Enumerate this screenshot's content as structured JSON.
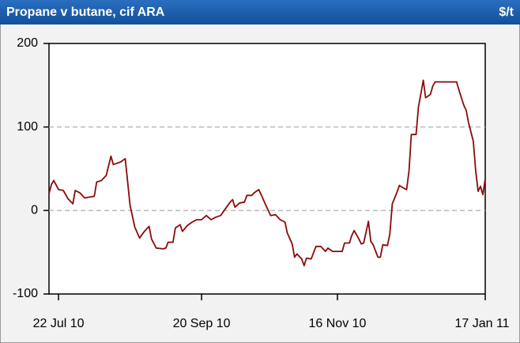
{
  "chart_data": {
    "type": "line",
    "title": "Propane v butane, cif ARA",
    "unit": "$/t",
    "x": [
      "2010-07-18",
      "2010-07-19",
      "2010-07-20",
      "2010-07-22",
      "2010-07-24",
      "2010-07-26",
      "2010-07-28",
      "2010-07-29",
      "2010-07-31",
      "2010-08-02",
      "2010-08-04",
      "2010-08-06",
      "2010-08-07",
      "2010-08-09",
      "2010-08-11",
      "2010-08-13",
      "2010-08-14",
      "2010-08-17",
      "2010-08-19",
      "2010-08-21",
      "2010-08-23",
      "2010-08-25",
      "2010-08-27",
      "2010-08-29",
      "2010-08-30",
      "2010-09-01",
      "2010-09-04",
      "2010-09-05",
      "2010-09-06",
      "2010-09-08",
      "2010-09-09",
      "2010-09-11",
      "2010-09-12",
      "2010-09-14",
      "2010-09-16",
      "2010-09-18",
      "2010-09-20",
      "2010-09-22",
      "2010-09-24",
      "2010-09-26",
      "2010-09-28",
      "2010-09-30",
      "2010-10-02",
      "2010-10-03",
      "2010-10-04",
      "2010-10-06",
      "2010-10-08",
      "2010-10-09",
      "2010-10-11",
      "2010-10-12",
      "2010-10-14",
      "2010-10-15",
      "2010-10-17",
      "2010-10-19",
      "2010-10-21",
      "2010-10-23",
      "2010-10-25",
      "2010-10-26",
      "2010-10-28",
      "2010-10-29",
      "2010-10-30",
      "2010-11-01",
      "2010-11-02",
      "2010-11-03",
      "2010-11-05",
      "2010-11-07",
      "2010-11-09",
      "2010-11-11",
      "2010-11-12",
      "2010-11-14",
      "2010-11-16",
      "2010-11-18",
      "2010-11-19",
      "2010-11-21",
      "2010-11-22",
      "2010-11-23",
      "2010-11-25",
      "2010-11-26",
      "2010-11-27",
      "2010-11-29",
      "2010-11-30",
      "2010-12-01",
      "2010-12-03",
      "2010-12-04",
      "2010-12-05",
      "2010-12-07",
      "2010-12-08",
      "2010-12-09",
      "2010-12-11",
      "2010-12-12",
      "2010-12-13",
      "2010-12-15",
      "2010-12-16",
      "2010-12-17",
      "2010-12-19",
      "2010-12-20",
      "2010-12-21",
      "2010-12-22",
      "2010-12-23",
      "2010-12-25",
      "2010-12-26",
      "2010-12-27",
      "2010-12-29",
      "2011-01-05",
      "2011-01-06",
      "2011-01-08",
      "2011-01-09",
      "2011-01-10",
      "2011-01-12",
      "2011-01-13",
      "2011-01-14",
      "2011-01-15",
      "2011-01-16",
      "2011-01-17"
    ],
    "series": [
      {
        "name": "Propane v butane",
        "color": "#8b0a0a",
        "values": [
          20,
          31,
          36,
          25,
          24,
          14,
          8,
          24,
          21,
          15,
          16,
          17,
          34,
          36,
          42,
          65,
          55,
          58,
          62,
          6,
          -20,
          -33,
          -25,
          -19,
          -34,
          -45,
          -46,
          -45,
          -38,
          -38,
          -21,
          -17,
          -25,
          -18,
          -14,
          -11,
          -11,
          -6,
          -11,
          -8,
          -6,
          2,
          10,
          13,
          4,
          9,
          10,
          18,
          18,
          21,
          25,
          19,
          6,
          -6,
          -5,
          -11,
          -14,
          -27,
          -40,
          -56,
          -52,
          -58,
          -66,
          -57,
          -58,
          -43,
          -43,
          -49,
          -45,
          -49,
          -49,
          -49,
          -39,
          -39,
          -30,
          -24,
          -34,
          -40,
          -39,
          -13,
          -37,
          -41,
          -56,
          -56,
          -41,
          -42,
          -28,
          8,
          22,
          30,
          28,
          25,
          47,
          91,
          91,
          124,
          140,
          156,
          135,
          139,
          149,
          154,
          154,
          154,
          144,
          126,
          120,
          105,
          83,
          48,
          23,
          29,
          19,
          38
        ]
      }
    ],
    "xlim": [
      "2010-07-18",
      "2011-01-17"
    ],
    "xticks": [
      {
        "value": "2010-07-22",
        "label": "22 Jul 10"
      },
      {
        "value": "2010-09-20",
        "label": "20 Sep 10"
      },
      {
        "value": "2010-11-16",
        "label": "16 Nov 10"
      },
      {
        "value": "2011-01-17",
        "label": "17 Jan 11"
      }
    ],
    "ylim": [
      -100,
      200
    ],
    "yticks": [
      -100,
      0,
      100,
      200
    ],
    "grid": true
  }
}
